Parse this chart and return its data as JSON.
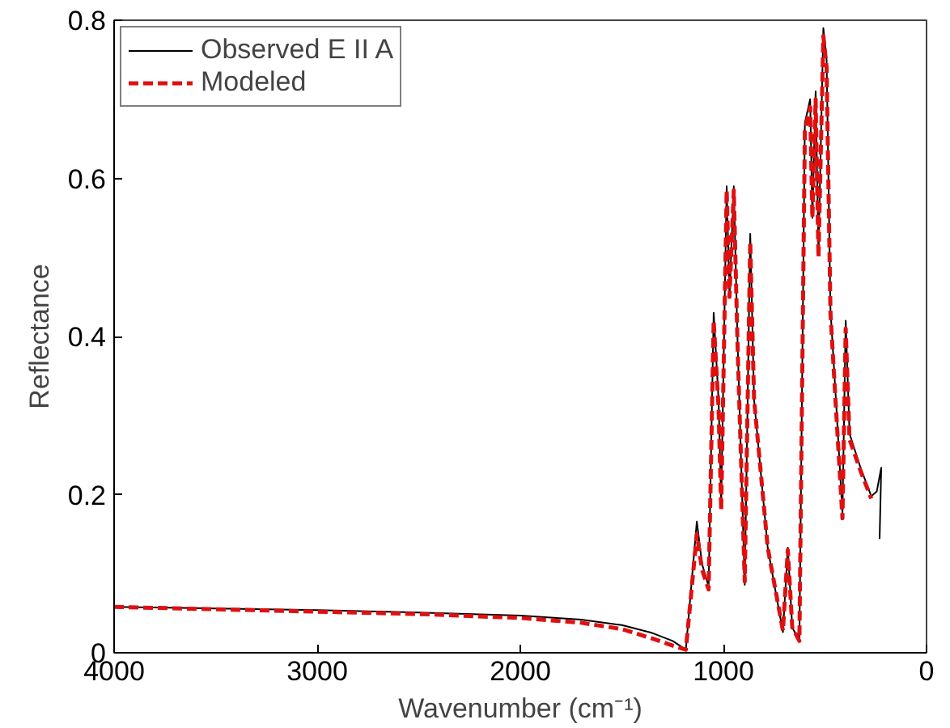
{
  "chart_data": {
    "type": "line",
    "xlabel": "Wavenumber (cm⁻¹)",
    "ylabel": "Reflectance",
    "xlim": [
      4000,
      0
    ],
    "ylim": [
      0,
      0.8
    ],
    "xticks": [
      4000,
      3000,
      2000,
      1000,
      0
    ],
    "yticks": [
      0,
      0.2,
      0.4,
      0.6,
      0.8
    ],
    "grid": false,
    "legend": "top left",
    "series": [
      {
        "name": "Observed E II A",
        "color": "#000000",
        "line_style": "solid",
        "x": [
          4000,
          3500,
          3000,
          2500,
          2000,
          1700,
          1500,
          1350,
          1250,
          1185,
          1131,
          1105,
          1073,
          1048,
          1024,
          1011,
          984,
          970,
          949,
          930,
          895,
          868,
          849,
          782,
          707,
          683,
          661,
          626,
          599,
          573,
          562,
          546,
          532,
          508,
          492,
          473,
          446,
          414,
          398,
          379,
          325,
          272,
          245,
          223,
          231
        ],
        "values": [
          0.058,
          0.056,
          0.054,
          0.051,
          0.047,
          0.042,
          0.035,
          0.025,
          0.015,
          0.004,
          0.166,
          0.112,
          0.084,
          0.43,
          0.32,
          0.19,
          0.59,
          0.45,
          0.59,
          0.39,
          0.086,
          0.53,
          0.32,
          0.133,
          0.026,
          0.133,
          0.032,
          0.015,
          0.67,
          0.7,
          0.55,
          0.71,
          0.505,
          0.79,
          0.75,
          0.434,
          0.32,
          0.176,
          0.42,
          0.277,
          0.234,
          0.198,
          0.204,
          0.234,
          0.144
        ]
      },
      {
        "name": "Modeled",
        "color": "#e01010",
        "line_style": "dashed",
        "x": [
          4000,
          3500,
          3000,
          2500,
          2000,
          1700,
          1500,
          1350,
          1250,
          1185,
          1131,
          1105,
          1073,
          1048,
          1024,
          1011,
          984,
          970,
          949,
          930,
          895,
          868,
          849,
          782,
          707,
          683,
          661,
          626,
          599,
          573,
          562,
          546,
          532,
          508,
          492,
          473,
          446,
          414,
          398,
          379,
          325,
          272
        ],
        "values": [
          0.058,
          0.055,
          0.052,
          0.049,
          0.044,
          0.038,
          0.03,
          0.018,
          0.009,
          0.004,
          0.15,
          0.105,
          0.08,
          0.42,
          0.31,
          0.18,
          0.585,
          0.45,
          0.585,
          0.385,
          0.09,
          0.52,
          0.32,
          0.133,
          0.028,
          0.13,
          0.032,
          0.015,
          0.66,
          0.69,
          0.55,
          0.7,
          0.5,
          0.78,
          0.74,
          0.43,
          0.31,
          0.17,
          0.41,
          0.27,
          0.23,
          0.195
        ]
      }
    ]
  }
}
